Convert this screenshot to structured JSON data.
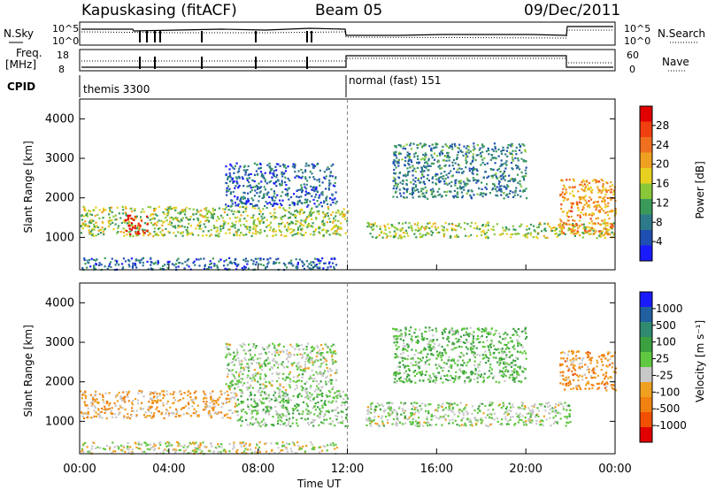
{
  "header": {
    "station": "Kapuskasing (fitACF)",
    "beam": "Beam 05",
    "date": "09/Dec/2011"
  },
  "params": {
    "nsky_label": "N.Sky",
    "nsearch_label": "N.Search",
    "freq_label_1": "Freq.",
    "freq_label_2": "[MHz]",
    "nave_label": "Nave",
    "cpid_label": "CPID",
    "nsky_ticks": [
      "10^5",
      "10^0"
    ],
    "nsearch_ticks": [
      "10^5",
      "10^0"
    ],
    "freq_ticks": [
      "18",
      "8"
    ],
    "nave_ticks": [
      "60",
      "0"
    ]
  },
  "cpid": [
    {
      "label": "themis 3300",
      "start": 0,
      "end": 12
    },
    {
      "label": "normal (fast) 151",
      "start": 12,
      "end": 24
    }
  ],
  "chart_data": [
    {
      "type": "heatmap",
      "panel": "power",
      "ylabel": "Slant Range [km]",
      "xlabel": "Time UT",
      "xlim": [
        0,
        24
      ],
      "ylim": [
        180,
        4500
      ],
      "xticks": [
        "00:00",
        "04:00",
        "08:00",
        "12:00",
        "16:00",
        "20:00",
        "00:00"
      ],
      "yticks": [
        1000,
        2000,
        3000,
        4000
      ],
      "colorbar": {
        "label": "Power [dB]",
        "ticks": [
          "4",
          "8",
          "12",
          "16",
          "20",
          "24",
          "28"
        ],
        "colors": [
          "#1a1aff",
          "#1f4fb0",
          "#2f7a8a",
          "#3a9a5a",
          "#8ac83a",
          "#e8d020",
          "#f0a020",
          "#f07020",
          "#f04010",
          "#e00000"
        ]
      },
      "regions": [
        {
          "t0": 0.0,
          "t1": 12.0,
          "r0": 1050,
          "r1": 1800,
          "value": 14
        },
        {
          "t0": 2.0,
          "t1": 3.0,
          "r0": 1100,
          "r1": 1600,
          "value": 28
        },
        {
          "t0": 6.5,
          "t1": 11.5,
          "r0": 1800,
          "r1": 2900,
          "value": 6
        },
        {
          "t0": 12.8,
          "t1": 24.0,
          "r0": 1000,
          "r1": 1400,
          "value": 14
        },
        {
          "t0": 21.5,
          "t1": 24.0,
          "r0": 1100,
          "r1": 2500,
          "value": 20
        },
        {
          "t0": 14.0,
          "t1": 20.0,
          "r0": 2000,
          "r1": 3400,
          "value": 8
        },
        {
          "t0": 0.0,
          "t1": 11.5,
          "r0": 200,
          "r1": 500,
          "value": 6
        }
      ]
    },
    {
      "type": "heatmap",
      "panel": "velocity",
      "ylabel": "Slant Range [km]",
      "xlabel": "Time UT",
      "xlim": [
        0,
        24
      ],
      "ylim": [
        180,
        4500
      ],
      "xticks": [
        "00:00",
        "04:00",
        "08:00",
        "12:00",
        "16:00",
        "20:00",
        "00:00"
      ],
      "yticks": [
        1000,
        2000,
        3000,
        4000
      ],
      "colorbar": {
        "label": "Velocity [m s⁻¹]",
        "ticks": [
          "1000",
          "500",
          "100",
          "25",
          "-25",
          "-100",
          "-500",
          "-1000"
        ],
        "colors": [
          "#1a1aff",
          "#2060a0",
          "#2f8a70",
          "#3aa040",
          "#60c840",
          "#c8c8c8",
          "#f0a020",
          "#f08010",
          "#f05000",
          "#e00000"
        ]
      },
      "regions": [
        {
          "t0": 0.0,
          "t1": 7.0,
          "r0": 1100,
          "r1": 1800,
          "value": -300
        },
        {
          "t0": 7.0,
          "t1": 12.0,
          "r0": 900,
          "r1": 1800,
          "value": 100
        },
        {
          "t0": 6.5,
          "t1": 11.5,
          "r0": 1800,
          "r1": 3000,
          "value": 0
        },
        {
          "t0": 12.8,
          "t1": 22.0,
          "r0": 900,
          "r1": 1500,
          "value": 0
        },
        {
          "t0": 21.5,
          "t1": 24.0,
          "r0": 1800,
          "r1": 2800,
          "value": -400
        },
        {
          "t0": 14.0,
          "t1": 20.0,
          "r0": 2000,
          "r1": 3400,
          "value": 150
        },
        {
          "t0": 0.0,
          "t1": 11.5,
          "r0": 200,
          "r1": 500,
          "value": -100
        }
      ]
    }
  ]
}
